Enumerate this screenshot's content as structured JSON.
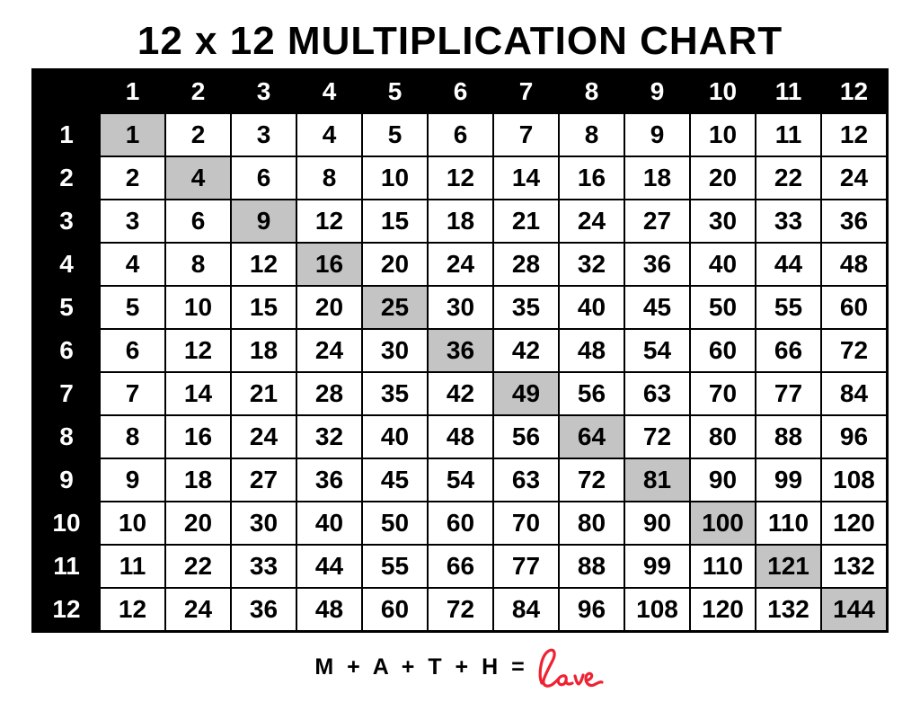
{
  "page": {
    "title": "12 x 12 MULTIPLICATION CHART",
    "caption": {
      "equation": "M + A + T + H =",
      "love_word": "love"
    }
  },
  "colors": {
    "header_bg": "#000000",
    "header_text": "#ffffff",
    "cell_bg": "#ffffff",
    "cell_text": "#000000",
    "diagonal_highlight_bg": "#c4c4c4",
    "grid_line": "#000000",
    "love_red": "#ee2233"
  },
  "chart_data": {
    "type": "table",
    "title": "12 x 12 MULTIPLICATION CHART",
    "column_headers": [
      "1",
      "2",
      "3",
      "4",
      "5",
      "6",
      "7",
      "8",
      "9",
      "10",
      "11",
      "12"
    ],
    "row_headers": [
      "1",
      "2",
      "3",
      "4",
      "5",
      "6",
      "7",
      "8",
      "9",
      "10",
      "11",
      "12"
    ],
    "rows": [
      [
        1,
        2,
        3,
        4,
        5,
        6,
        7,
        8,
        9,
        10,
        11,
        12
      ],
      [
        2,
        4,
        6,
        8,
        10,
        12,
        14,
        16,
        18,
        20,
        22,
        24
      ],
      [
        3,
        6,
        9,
        12,
        15,
        18,
        21,
        24,
        27,
        30,
        33,
        36
      ],
      [
        4,
        8,
        12,
        16,
        20,
        24,
        28,
        32,
        36,
        40,
        44,
        48
      ],
      [
        5,
        10,
        15,
        20,
        25,
        30,
        35,
        40,
        45,
        50,
        55,
        60
      ],
      [
        6,
        12,
        18,
        24,
        30,
        36,
        42,
        48,
        54,
        60,
        66,
        72
      ],
      [
        7,
        14,
        21,
        28,
        35,
        42,
        49,
        56,
        63,
        70,
        77,
        84
      ],
      [
        8,
        16,
        24,
        32,
        40,
        48,
        56,
        64,
        72,
        80,
        88,
        96
      ],
      [
        9,
        18,
        27,
        36,
        45,
        54,
        63,
        72,
        81,
        90,
        99,
        108
      ],
      [
        10,
        20,
        30,
        40,
        50,
        60,
        70,
        80,
        90,
        100,
        110,
        120
      ],
      [
        11,
        22,
        33,
        44,
        55,
        66,
        77,
        88,
        99,
        110,
        121,
        132
      ],
      [
        12,
        24,
        36,
        48,
        60,
        72,
        84,
        96,
        108,
        120,
        132,
        144
      ]
    ],
    "highlight_note": "diagonal perfect-square cells shaded gray",
    "legend_position": "none",
    "grid": true
  }
}
